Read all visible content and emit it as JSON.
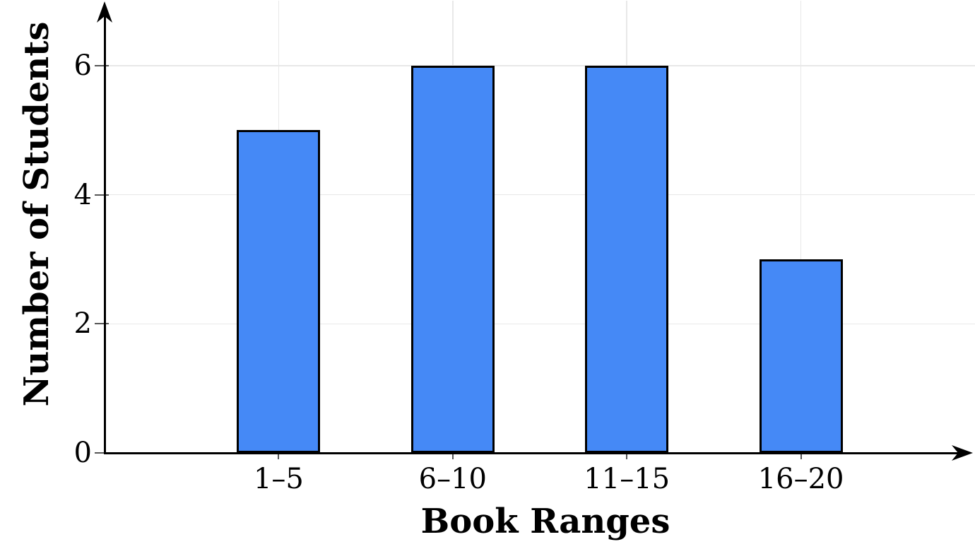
{
  "chart_data": {
    "type": "bar",
    "title": "",
    "xlabel": "Book Ranges",
    "ylabel": "Number of Students",
    "categories": [
      "1–5",
      "6–10",
      "11–15",
      "16–20"
    ],
    "values": [
      5,
      6,
      6,
      3
    ],
    "y_ticks": [
      0,
      2,
      4,
      6
    ],
    "ylim": [
      0,
      7
    ],
    "xlim": [
      0,
      5
    ],
    "grid": "major-both",
    "legend_position": "none",
    "colors": {
      "bar_fill": "#4589f6",
      "bar_border": "#000000",
      "axis": "#000000",
      "gridline": "#e8e8e8",
      "tick": "#555555",
      "text": "#000000",
      "background": "#ffffff"
    }
  }
}
